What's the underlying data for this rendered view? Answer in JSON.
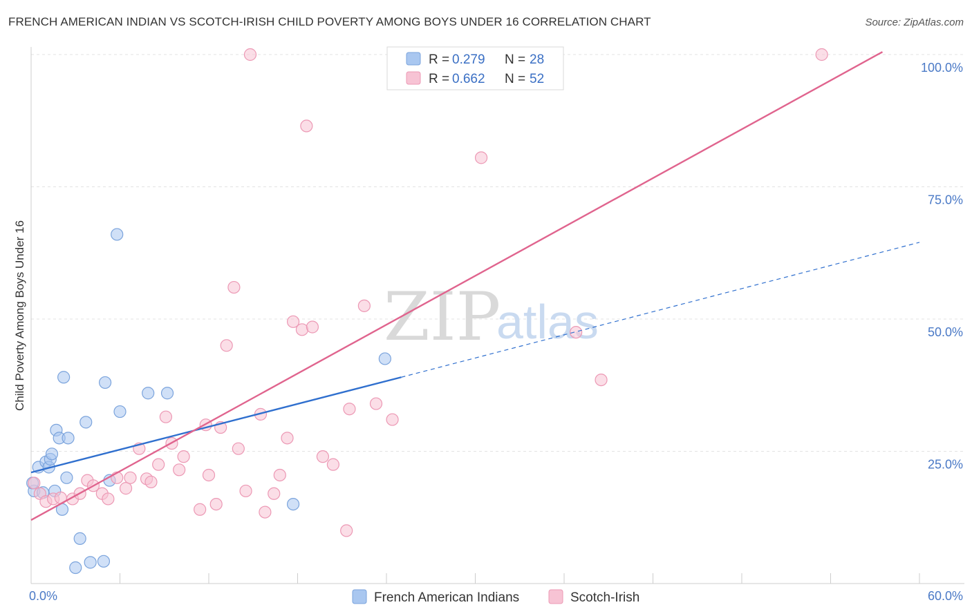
{
  "title": "FRENCH AMERICAN INDIAN VS SCOTCH-IRISH CHILD POVERTY AMONG BOYS UNDER 16 CORRELATION CHART",
  "source": "Source: ZipAtlas.com",
  "watermark": {
    "zip": "ZIP",
    "atlas": "atlas"
  },
  "chart_data": {
    "type": "scatter",
    "xlabel": "",
    "ylabel": "Child Poverty Among Boys Under 16",
    "xlim": [
      0,
      60
    ],
    "ylim": [
      0,
      103
    ],
    "x_tick_labels": [
      {
        "value": 0,
        "label": "0.0%"
      },
      {
        "value": 60,
        "label": "60.0%"
      }
    ],
    "x_minor_ticks": [
      0,
      6,
      12,
      18,
      24,
      30,
      36,
      42,
      48,
      54,
      60
    ],
    "y_ticks": [
      {
        "value": 25,
        "label": "25.0%"
      },
      {
        "value": 50,
        "label": "50.0%"
      },
      {
        "value": 75,
        "label": "75.0%"
      },
      {
        "value": 100,
        "label": "100.0%"
      }
    ],
    "grid": true,
    "legend_position": "top-center",
    "series": [
      {
        "name": "French American Indians",
        "color": "#a9c7f0",
        "stroke": "#7aa3dc",
        "line_color": "#2f6fce",
        "r_label": "R =",
        "r_value": "0.279",
        "n_label": "N =",
        "n_value": "28",
        "trend": {
          "x0": 0,
          "y0": 21.0,
          "x1": 25,
          "y1": 39.0,
          "dash_to_x": 60,
          "dash_to_y": 64.5
        },
        "points": [
          [
            0.2,
            17.5
          ],
          [
            0.5,
            22.0
          ],
          [
            0.8,
            17.2
          ],
          [
            1.0,
            23.0
          ],
          [
            1.2,
            22.0
          ],
          [
            1.3,
            23.5
          ],
          [
            1.4,
            24.5
          ],
          [
            1.6,
            17.5
          ],
          [
            1.7,
            29.0
          ],
          [
            1.9,
            27.5
          ],
          [
            2.1,
            14.0
          ],
          [
            2.2,
            39.0
          ],
          [
            2.4,
            20.0
          ],
          [
            2.5,
            27.5
          ],
          [
            3.3,
            8.5
          ],
          [
            3.7,
            30.5
          ],
          [
            4.0,
            4.0
          ],
          [
            4.9,
            4.2
          ],
          [
            3.0,
            3.0
          ],
          [
            5.0,
            38.0
          ],
          [
            5.3,
            19.5
          ],
          [
            5.8,
            66.0
          ],
          [
            6.0,
            32.5
          ],
          [
            7.9,
            36.0
          ],
          [
            9.2,
            36.0
          ],
          [
            17.7,
            15.0
          ],
          [
            23.9,
            42.5
          ],
          [
            0.1,
            19.0
          ]
        ]
      },
      {
        "name": "Scotch-Irish",
        "color": "#f7c3d4",
        "stroke": "#ec98b4",
        "line_color": "#e0648e",
        "r_label": "R =",
        "r_value": "0.662",
        "n_label": "N =",
        "n_value": "52",
        "trend": {
          "x0": 0,
          "y0": 12.0,
          "x1": 57.5,
          "y1": 100.5
        },
        "points": [
          [
            0.2,
            19.0
          ],
          [
            0.6,
            17.0
          ],
          [
            1.0,
            15.5
          ],
          [
            1.5,
            16.0
          ],
          [
            2.0,
            16.2
          ],
          [
            2.8,
            16.0
          ],
          [
            3.3,
            17.0
          ],
          [
            3.8,
            19.5
          ],
          [
            4.2,
            18.5
          ],
          [
            4.8,
            17.0
          ],
          [
            5.2,
            16.0
          ],
          [
            5.8,
            20.0
          ],
          [
            6.4,
            18.0
          ],
          [
            6.7,
            20.0
          ],
          [
            7.3,
            25.5
          ],
          [
            7.8,
            19.8
          ],
          [
            8.1,
            19.2
          ],
          [
            8.6,
            22.5
          ],
          [
            9.1,
            31.5
          ],
          [
            9.5,
            26.5
          ],
          [
            10.0,
            21.5
          ],
          [
            10.3,
            24.0
          ],
          [
            11.4,
            14.0
          ],
          [
            11.8,
            30.0
          ],
          [
            12.0,
            20.5
          ],
          [
            12.8,
            29.5
          ],
          [
            13.2,
            45.0
          ],
          [
            13.7,
            56.0
          ],
          [
            14.0,
            25.5
          ],
          [
            14.8,
            100.0
          ],
          [
            15.5,
            32.0
          ],
          [
            15.8,
            13.5
          ],
          [
            16.4,
            17.0
          ],
          [
            16.8,
            20.5
          ],
          [
            17.3,
            27.5
          ],
          [
            17.7,
            49.5
          ],
          [
            18.3,
            48.0
          ],
          [
            18.6,
            86.5
          ],
          [
            19.0,
            48.5
          ],
          [
            19.7,
            24.0
          ],
          [
            20.4,
            22.5
          ],
          [
            21.3,
            10.0
          ],
          [
            21.5,
            33.0
          ],
          [
            22.5,
            52.5
          ],
          [
            23.3,
            34.0
          ],
          [
            24.4,
            31.0
          ],
          [
            30.4,
            80.5
          ],
          [
            36.8,
            47.5
          ],
          [
            38.5,
            38.5
          ],
          [
            53.4,
            100.0
          ],
          [
            14.5,
            17.5
          ],
          [
            12.5,
            15.0
          ]
        ]
      }
    ]
  }
}
